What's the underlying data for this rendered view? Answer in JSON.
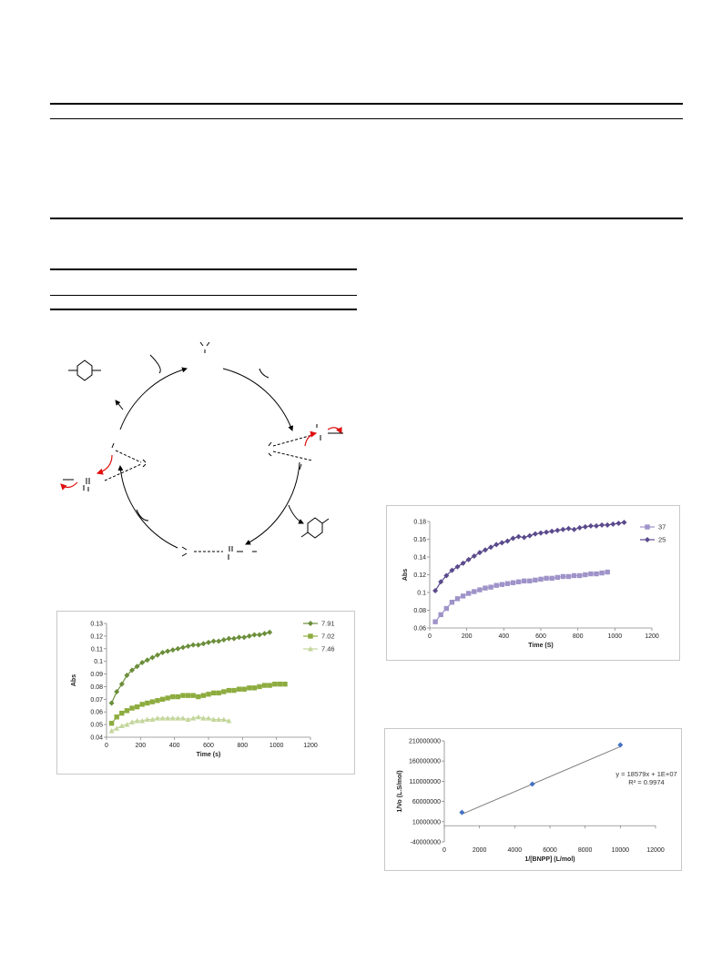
{
  "chart_data": [
    {
      "type": "scatter",
      "title": "",
      "xlabel": "Time (s)",
      "ylabel": "Abs",
      "xlim": [
        0,
        1200
      ],
      "ylim": [
        0.04,
        0.13
      ],
      "xticks": [
        "0",
        "200",
        "400",
        "600",
        "800",
        "1000",
        "1200"
      ],
      "yticks": [
        "0.04",
        "0.05",
        "0.06",
        "0.07",
        "0.08",
        "0.09",
        "0.1",
        "0.11",
        "0.12",
        "0.13"
      ],
      "legend_position": "top-right",
      "series": [
        {
          "name": "7.91",
          "color": "#6b8e3a",
          "marker": "diamond",
          "x": [
            30,
            60,
            90,
            120,
            150,
            180,
            210,
            240,
            270,
            300,
            330,
            360,
            390,
            420,
            450,
            480,
            510,
            540,
            570,
            600,
            630,
            660,
            690,
            720,
            750,
            780,
            810,
            840,
            870,
            900,
            930,
            960
          ],
          "y": [
            0.067,
            0.076,
            0.082,
            0.089,
            0.093,
            0.096,
            0.099,
            0.101,
            0.103,
            0.105,
            0.107,
            0.108,
            0.109,
            0.11,
            0.111,
            0.112,
            0.113,
            0.113,
            0.114,
            0.115,
            0.116,
            0.116,
            0.117,
            0.118,
            0.118,
            0.119,
            0.119,
            0.12,
            0.121,
            0.121,
            0.122,
            0.123
          ]
        },
        {
          "name": "7.02",
          "color": "#8dac3f",
          "marker": "square",
          "x": [
            30,
            60,
            90,
            120,
            150,
            180,
            210,
            240,
            270,
            300,
            330,
            360,
            390,
            420,
            450,
            480,
            510,
            540,
            570,
            600,
            630,
            660,
            690,
            720,
            750,
            780,
            810,
            840,
            870,
            900,
            930,
            960,
            990,
            1020,
            1050
          ],
          "y": [
            0.051,
            0.056,
            0.059,
            0.061,
            0.063,
            0.064,
            0.066,
            0.067,
            0.068,
            0.069,
            0.07,
            0.071,
            0.072,
            0.072,
            0.073,
            0.073,
            0.073,
            0.072,
            0.073,
            0.074,
            0.075,
            0.075,
            0.076,
            0.077,
            0.077,
            0.078,
            0.078,
            0.079,
            0.079,
            0.08,
            0.081,
            0.081,
            0.082,
            0.082,
            0.082
          ]
        },
        {
          "name": "7.46",
          "color": "#c3d69b",
          "marker": "triangle",
          "x": [
            30,
            60,
            90,
            120,
            150,
            180,
            210,
            240,
            270,
            300,
            330,
            360,
            390,
            420,
            450,
            480,
            510,
            540,
            570,
            600,
            630,
            660,
            690,
            720
          ],
          "y": [
            0.045,
            0.047,
            0.049,
            0.05,
            0.052,
            0.053,
            0.053,
            0.054,
            0.054,
            0.055,
            0.055,
            0.055,
            0.055,
            0.055,
            0.055,
            0.054,
            0.055,
            0.056,
            0.055,
            0.055,
            0.054,
            0.054,
            0.054,
            0.053
          ]
        }
      ]
    },
    {
      "type": "scatter",
      "title": "",
      "xlabel": "Time (S)",
      "ylabel": "Abs",
      "xlim": [
        0,
        1200
      ],
      "ylim": [
        0.06,
        0.18
      ],
      "xticks": [
        "0",
        "200",
        "400",
        "600",
        "800",
        "1000",
        "1200"
      ],
      "yticks": [
        "0.06",
        "0.08",
        "0.1",
        "0.12",
        "0.14",
        "0.16",
        "0.18"
      ],
      "legend_position": "top-right",
      "series": [
        {
          "name": "37",
          "color": "#9f93c9",
          "marker": "square",
          "x": [
            30,
            60,
            90,
            120,
            150,
            180,
            210,
            240,
            270,
            300,
            330,
            360,
            390,
            420,
            450,
            480,
            510,
            540,
            570,
            600,
            630,
            660,
            690,
            720,
            750,
            780,
            810,
            840,
            870,
            900,
            930,
            960
          ],
          "y": [
            0.067,
            0.075,
            0.082,
            0.089,
            0.093,
            0.096,
            0.099,
            0.101,
            0.103,
            0.105,
            0.106,
            0.108,
            0.109,
            0.11,
            0.111,
            0.112,
            0.113,
            0.113,
            0.114,
            0.115,
            0.116,
            0.116,
            0.117,
            0.118,
            0.118,
            0.119,
            0.119,
            0.12,
            0.121,
            0.121,
            0.122,
            0.123
          ]
        },
        {
          "name": "25",
          "color": "#5b4a8c",
          "marker": "diamond",
          "x": [
            30,
            60,
            90,
            120,
            150,
            180,
            210,
            240,
            270,
            300,
            330,
            360,
            390,
            420,
            450,
            480,
            510,
            540,
            570,
            600,
            630,
            660,
            690,
            720,
            750,
            780,
            810,
            840,
            870,
            900,
            930,
            960,
            990,
            1020,
            1050
          ],
          "y": [
            0.102,
            0.112,
            0.119,
            0.125,
            0.129,
            0.133,
            0.137,
            0.141,
            0.145,
            0.148,
            0.151,
            0.154,
            0.156,
            0.158,
            0.161,
            0.163,
            0.162,
            0.164,
            0.166,
            0.167,
            0.168,
            0.169,
            0.17,
            0.171,
            0.172,
            0.171,
            0.173,
            0.174,
            0.175,
            0.175,
            0.176,
            0.176,
            0.177,
            0.178,
            0.179
          ]
        }
      ]
    },
    {
      "type": "scatter",
      "title": "",
      "xlabel": "1/[BNPP] (L/mol)",
      "ylabel": "1/Vo (L.S/mol)",
      "xlim": [
        0,
        12000
      ],
      "ylim": [
        -40000000,
        210000000
      ],
      "xticks": [
        "0",
        "2000",
        "4000",
        "6000",
        "8000",
        "10000",
        "12000"
      ],
      "yticks": [
        "-40000000",
        "10000000",
        "60000000",
        "110000000",
        "160000000",
        "210000000"
      ],
      "annotation": [
        "y = 18579x + 1E+07",
        "R² = 0.9974"
      ],
      "series": [
        {
          "marker": "diamond",
          "color": "#4472c4",
          "x": [
            1000,
            5000,
            10000
          ],
          "y": [
            33000000,
            103000000,
            200000000
          ]
        }
      ],
      "trendline": {
        "slope": 18579,
        "intercept": 10000000,
        "x_range": [
          1000,
          10000
        ]
      }
    }
  ]
}
